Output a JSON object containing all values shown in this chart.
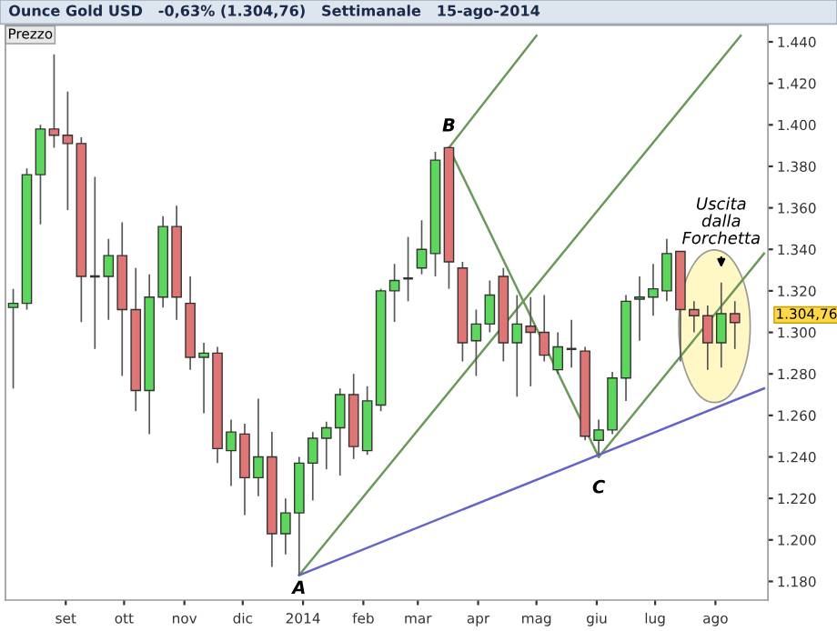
{
  "chart_data": {
    "type": "candlestick",
    "title": "Ounce Gold USD   -0,63% (1.304,76)   Settimanale   15-ago-2014",
    "x": [
      "2013-08-05",
      "2013-08-12",
      "2013-08-19",
      "2013-08-26",
      "2013-09-02",
      "2013-09-09",
      "2013-09-16",
      "2013-09-23",
      "2013-09-30",
      "2013-10-07",
      "2013-10-14",
      "2013-10-21",
      "2013-10-28",
      "2013-11-04",
      "2013-11-11",
      "2013-11-18",
      "2013-11-25",
      "2013-12-02",
      "2013-12-09",
      "2013-12-16",
      "2013-12-23",
      "2013-12-30",
      "2014-01-06",
      "2014-01-13",
      "2014-01-20",
      "2014-01-27",
      "2014-02-03",
      "2014-02-10",
      "2014-02-17",
      "2014-02-24",
      "2014-03-03",
      "2014-03-10",
      "2014-03-17",
      "2014-03-24",
      "2014-03-31",
      "2014-04-07",
      "2014-04-14",
      "2014-04-21",
      "2014-04-28",
      "2014-05-05",
      "2014-05-12",
      "2014-05-19",
      "2014-05-26",
      "2014-06-02",
      "2014-06-09",
      "2014-06-16",
      "2014-06-23",
      "2014-06-30",
      "2014-07-07",
      "2014-07-14",
      "2014-07-21",
      "2014-07-28",
      "2014-08-04",
      "2014-08-11"
    ],
    "ohlc": [
      [
        1312,
        1321,
        1273,
        1314
      ],
      [
        1314,
        1379,
        1311,
        1376
      ],
      [
        1376,
        1400,
        1352,
        1398
      ],
      [
        1398,
        1434,
        1389,
        1395
      ],
      [
        1395,
        1416,
        1359,
        1391
      ],
      [
        1391,
        1394,
        1305,
        1327
      ],
      [
        1327,
        1375,
        1292,
        1327
      ],
      [
        1327,
        1345,
        1306,
        1337
      ],
      [
        1337,
        1353,
        1279,
        1311
      ],
      [
        1311,
        1331,
        1262,
        1272
      ],
      [
        1272,
        1328,
        1251,
        1317
      ],
      [
        1317,
        1356,
        1312,
        1351
      ],
      [
        1351,
        1361,
        1306,
        1317
      ],
      [
        1314,
        1327,
        1282,
        1288
      ],
      [
        1288,
        1295,
        1261,
        1290
      ],
      [
        1290,
        1293,
        1237,
        1244
      ],
      [
        1243,
        1258,
        1226,
        1252
      ],
      [
        1251,
        1256,
        1212,
        1230
      ],
      [
        1230,
        1268,
        1221,
        1240
      ],
      [
        1240,
        1252,
        1187,
        1203
      ],
      [
        1203,
        1220,
        1193,
        1213
      ],
      [
        1213,
        1240,
        1183,
        1237
      ],
      [
        1237,
        1252,
        1219,
        1249
      ],
      [
        1249,
        1257,
        1234,
        1254
      ],
      [
        1254,
        1273,
        1231,
        1270
      ],
      [
        1270,
        1280,
        1239,
        1245
      ],
      [
        1243,
        1274,
        1241,
        1267
      ],
      [
        1265,
        1321,
        1262,
        1320
      ],
      [
        1320,
        1333,
        1305,
        1325
      ],
      [
        1326,
        1346,
        1315,
        1326
      ],
      [
        1331,
        1354,
        1328,
        1340
      ],
      [
        1338,
        1387,
        1327,
        1383
      ],
      [
        1389,
        1389,
        1321,
        1334
      ],
      [
        1331,
        1334,
        1286,
        1295
      ],
      [
        1296,
        1311,
        1279,
        1304
      ],
      [
        1304,
        1325,
        1300,
        1318
      ],
      [
        1327,
        1331,
        1286,
        1295
      ],
      [
        1295,
        1318,
        1269,
        1304
      ],
      [
        1303,
        1317,
        1274,
        1300
      ],
      [
        1300,
        1318,
        1286,
        1289
      ],
      [
        1282,
        1300,
        1280,
        1293
      ],
      [
        1292,
        1306,
        1283,
        1292
      ],
      [
        1291,
        1293,
        1248,
        1250
      ],
      [
        1248,
        1258,
        1241,
        1253
      ],
      [
        1253,
        1281,
        1251,
        1278
      ],
      [
        1278,
        1318,
        1267,
        1315
      ],
      [
        1316,
        1327,
        1296,
        1317
      ],
      [
        1317,
        1333,
        1308,
        1321
      ],
      [
        1320,
        1345,
        1315,
        1338
      ],
      [
        1339,
        1339,
        1286,
        1311
      ],
      [
        1311,
        1315,
        1300,
        1308
      ],
      [
        1308,
        1313,
        1282,
        1295
      ],
      [
        1295,
        1324,
        1283,
        1309
      ],
      [
        1309,
        1315,
        1292,
        1304.76
      ]
    ],
    "colors": [
      "#5cd65c",
      "#5cd65c",
      "#5cd65c",
      "#e07575",
      "#e07575",
      "#e07575",
      "#333333",
      "#5cd65c",
      "#e07575",
      "#e07575",
      "#5cd65c",
      "#5cd65c",
      "#e07575",
      "#e07575",
      "#5cd65c",
      "#e07575",
      "#5cd65c",
      "#e07575",
      "#5cd65c",
      "#e07575",
      "#5cd65c",
      "#5cd65c",
      "#5cd65c",
      "#5cd65c",
      "#5cd65c",
      "#e07575",
      "#5cd65c",
      "#5cd65c",
      "#5cd65c",
      "#333333",
      "#5cd65c",
      "#5cd65c",
      "#e07575",
      "#e07575",
      "#5cd65c",
      "#5cd65c",
      "#e07575",
      "#5cd65c",
      "#e07575",
      "#e07575",
      "#5cd65c",
      "#333333",
      "#e07575",
      "#5cd65c",
      "#5cd65c",
      "#5cd65c",
      "#5cd65c",
      "#5cd65c",
      "#5cd65c",
      "#e07575",
      "#e07575",
      "#e07575",
      "#5cd65c",
      "#e07575"
    ],
    "series": [
      {
        "type": "line",
        "color": "#6a9a5a",
        "x": [
          "2014-03-17",
          "2014-05-01"
        ],
        "values": [
          1389,
          1443
        ]
      },
      {
        "type": "line",
        "color": "#6a9a5a",
        "x": [
          "2013-12-30",
          "2014-08-14"
        ],
        "values": [
          1183,
          1443
        ]
      },
      {
        "type": "line",
        "color": "#6a9a5a",
        "x": [
          "2014-06-02",
          "2014-08-26"
        ],
        "values": [
          1240,
          1338
        ]
      },
      {
        "type": "line",
        "color": "#6a9a5a",
        "x": [
          "2014-03-17",
          "2014-06-02"
        ],
        "values": [
          1389,
          1240
        ]
      },
      {
        "type": "line",
        "color": "#6464c8",
        "x": [
          "2013-12-30",
          "2014-08-26"
        ],
        "values": [
          1183,
          1273
        ]
      }
    ],
    "xlim": [
      "2013-08-01",
      "2014-08-28"
    ],
    "xticks": [
      {
        "value": "2013-09-01",
        "label": "set"
      },
      {
        "value": "2013-10-01",
        "label": "ott"
      },
      {
        "value": "2013-11-01",
        "label": "nov"
      },
      {
        "value": "2013-12-01",
        "label": "dic"
      },
      {
        "value": "2014-01-01",
        "label": "2014"
      },
      {
        "value": "2014-02-01",
        "label": "feb"
      },
      {
        "value": "2014-03-01",
        "label": "mar"
      },
      {
        "value": "2014-04-01",
        "label": "apr"
      },
      {
        "value": "2014-05-01",
        "label": "mag"
      },
      {
        "value": "2014-06-01",
        "label": "giu"
      },
      {
        "value": "2014-07-01",
        "label": "lug"
      },
      {
        "value": "2014-08-01",
        "label": "ago"
      }
    ],
    "ylim": [
      1171,
      1448
    ],
    "yticks": [
      {
        "value": 1180,
        "label": "1.180"
      },
      {
        "value": 1200,
        "label": "1.200"
      },
      {
        "value": 1220,
        "label": "1.220"
      },
      {
        "value": 1240,
        "label": "1.240"
      },
      {
        "value": 1260,
        "label": "1.260"
      },
      {
        "value": 1280,
        "label": "1.280"
      },
      {
        "value": 1300,
        "label": "1.300"
      },
      {
        "value": 1320,
        "label": "1.320"
      },
      {
        "value": 1340,
        "label": "1.340"
      },
      {
        "value": 1360,
        "label": "1.360"
      },
      {
        "value": 1380,
        "label": "1.380"
      },
      {
        "value": 1400,
        "label": "1.400"
      },
      {
        "value": 1420,
        "label": "1.420"
      },
      {
        "value": 1440,
        "label": "1.440"
      }
    ],
    "grid": false,
    "legend": false,
    "annotations": [
      "Prezzo",
      {
        "text": "A",
        "x": "2013-12-30",
        "y": 1183
      },
      {
        "text": "B",
        "x": "2014-03-17",
        "y": 1389
      },
      {
        "text": "C",
        "x": "2014-06-02",
        "y": 1240
      },
      "Uscita\ndalla\nForchetta",
      "1.304,76"
    ]
  }
}
